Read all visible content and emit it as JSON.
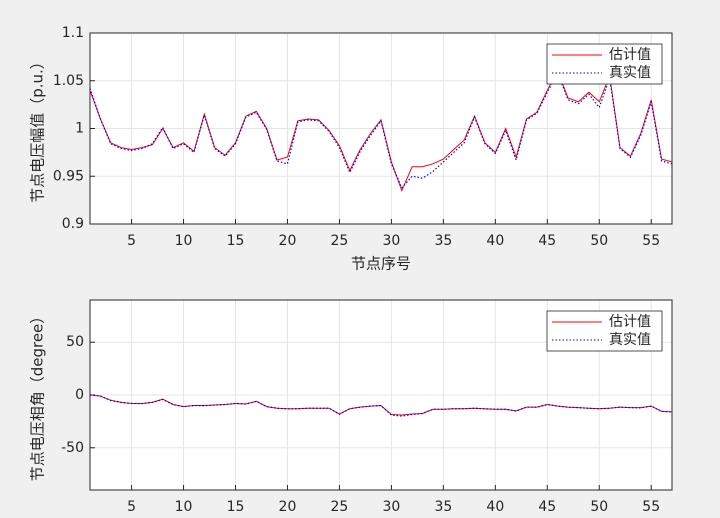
{
  "chart_data": [
    {
      "type": "line",
      "xlabel": "节点序号",
      "ylabel": "节点电压幅值（p.u.）",
      "x": [
        1,
        2,
        3,
        4,
        5,
        6,
        7,
        8,
        9,
        10,
        11,
        12,
        13,
        14,
        15,
        16,
        17,
        18,
        19,
        20,
        21,
        22,
        23,
        24,
        25,
        26,
        27,
        28,
        29,
        30,
        31,
        32,
        33,
        34,
        35,
        36,
        37,
        38,
        39,
        40,
        41,
        42,
        43,
        44,
        45,
        46,
        47,
        48,
        49,
        50,
        51,
        52,
        53,
        54,
        55,
        56,
        57
      ],
      "xlim": [
        1,
        57
      ],
      "xticks": [
        5,
        10,
        15,
        20,
        25,
        30,
        35,
        40,
        45,
        50,
        55
      ],
      "ylim": [
        0.9,
        1.1
      ],
      "yticks": [
        0.9,
        0.95,
        1,
        1.05,
        1.1
      ],
      "grid": true,
      "legend": "northeast",
      "series": [
        {
          "name": "估计值",
          "color": "#ff0000",
          "style": "solid",
          "values": [
            1.04,
            1.01,
            0.985,
            0.98,
            0.978,
            0.98,
            0.983,
            1.0,
            0.98,
            0.985,
            0.976,
            1.015,
            0.98,
            0.972,
            0.985,
            1.013,
            1.018,
            1.0,
            0.967,
            0.97,
            1.008,
            1.01,
            1.009,
            0.998,
            0.982,
            0.956,
            0.978,
            0.995,
            1.009,
            0.965,
            0.935,
            0.96,
            0.96,
            0.963,
            0.968,
            0.978,
            0.988,
            1.013,
            0.985,
            0.975,
            1.0,
            0.97,
            1.01,
            1.017,
            1.04,
            1.06,
            1.032,
            1.028,
            1.038,
            1.028,
            1.055,
            0.98,
            0.971,
            0.995,
            1.03,
            0.968,
            0.965
          ]
        },
        {
          "name": "真实值",
          "color": "#0000ff",
          "style": "dotted",
          "values": [
            1.042,
            1.01,
            0.984,
            0.979,
            0.977,
            0.979,
            0.984,
            1.001,
            0.979,
            0.984,
            0.975,
            1.014,
            0.979,
            0.971,
            0.984,
            1.012,
            1.017,
            0.999,
            0.966,
            0.963,
            1.007,
            1.009,
            1.008,
            0.997,
            0.98,
            0.954,
            0.976,
            0.993,
            1.008,
            0.963,
            0.938,
            0.95,
            0.948,
            0.955,
            0.965,
            0.975,
            0.985,
            1.012,
            0.984,
            0.974,
            0.998,
            0.967,
            1.009,
            1.016,
            1.038,
            1.058,
            1.03,
            1.026,
            1.036,
            1.022,
            1.053,
            0.979,
            0.97,
            0.993,
            1.028,
            0.966,
            0.963
          ]
        }
      ]
    },
    {
      "type": "line",
      "ylabel": "节点电压相角（degree）",
      "x": [
        1,
        2,
        3,
        4,
        5,
        6,
        7,
        8,
        9,
        10,
        11,
        12,
        13,
        14,
        15,
        16,
        17,
        18,
        19,
        20,
        21,
        22,
        23,
        24,
        25,
        26,
        27,
        28,
        29,
        30,
        31,
        32,
        33,
        34,
        35,
        36,
        37,
        38,
        39,
        40,
        41,
        42,
        43,
        44,
        45,
        46,
        47,
        48,
        49,
        50,
        51,
        52,
        53,
        54,
        55,
        56,
        57
      ],
      "xlim": [
        1,
        57
      ],
      "xticks": [
        5,
        10,
        15,
        20,
        25,
        30,
        35,
        40,
        45,
        50,
        55
      ],
      "ylim": [
        -90,
        90
      ],
      "yticks": [
        -50,
        0,
        50
      ],
      "grid": true,
      "legend": "northeast",
      "series": [
        {
          "name": "估计值",
          "color": "#ff0000",
          "style": "solid",
          "values": [
            0,
            -1,
            -5,
            -7,
            -8,
            -8,
            -7,
            -4,
            -9,
            -11,
            -10,
            -10,
            -9.5,
            -9,
            -8,
            -8.5,
            -6,
            -11,
            -12.5,
            -13,
            -13,
            -12.5,
            -12.5,
            -12.5,
            -18,
            -13,
            -11.5,
            -10.5,
            -10,
            -18.5,
            -19,
            -18,
            -17.5,
            -13.5,
            -13.5,
            -13,
            -13,
            -12.5,
            -13,
            -13.5,
            -13.5,
            -15,
            -11.5,
            -11.5,
            -9,
            -10.5,
            -11.5,
            -12,
            -12.5,
            -13,
            -12.5,
            -11.5,
            -12,
            -12,
            -10.5,
            -15.5,
            -16
          ]
        },
        {
          "name": "真实值",
          "color": "#0000ff",
          "style": "dotted",
          "values": [
            0,
            -1,
            -5.2,
            -7,
            -8,
            -8.2,
            -7,
            -4.2,
            -9,
            -11,
            -10,
            -10.2,
            -9.5,
            -9,
            -8,
            -8.5,
            -6,
            -11,
            -12.5,
            -13.2,
            -13,
            -12.5,
            -12.6,
            -12.5,
            -18.2,
            -13,
            -11.5,
            -10.5,
            -10,
            -19,
            -20,
            -18.5,
            -17.5,
            -13.5,
            -13.6,
            -13,
            -13,
            -12.5,
            -13.2,
            -13.5,
            -13.6,
            -15.2,
            -11.5,
            -11.6,
            -9,
            -10.5,
            -11.6,
            -12,
            -12.6,
            -13,
            -12.5,
            -11.5,
            -12,
            -12.2,
            -10.5,
            -15.5,
            -16
          ]
        }
      ]
    }
  ]
}
